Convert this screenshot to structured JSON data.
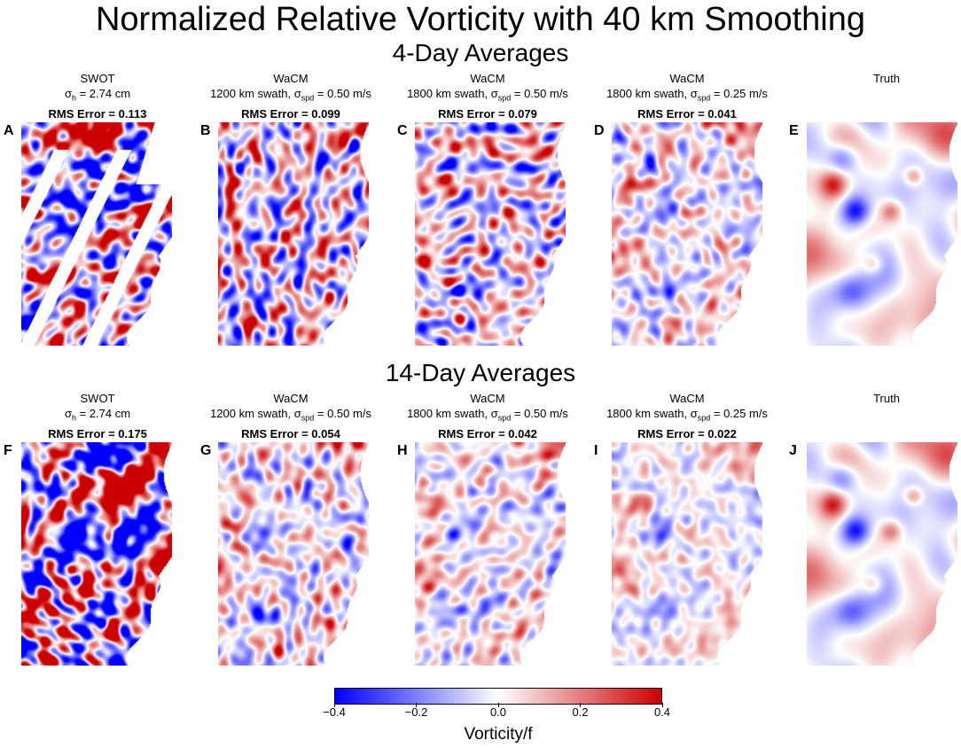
{
  "figure": {
    "title": "Normalized Relative Vorticity with 40 km Smoothing",
    "section_top": "4-Day Averages",
    "section_bottom": "14-Day Averages"
  },
  "chart_data": {
    "type": "heatmap",
    "colormap": {
      "low": "#0000ff",
      "mid": "#ffffff",
      "high": "#cc0000"
    },
    "vmin": -0.4,
    "vmax": 0.4,
    "colorbar": {
      "label": "Vorticity/f",
      "ticks": [
        -0.4,
        -0.2,
        0.0,
        0.2,
        0.4
      ],
      "tick_labels": [
        "−0.4",
        "−0.2",
        "0.0",
        "0.2",
        "0.4"
      ]
    },
    "panels": [
      {
        "letter": "A",
        "name": "SWOT",
        "param": "σh = 2.74 cm",
        "rms_label": "RMS Error = 0.113",
        "rms": 0.113,
        "average_days": 4
      },
      {
        "letter": "B",
        "name": "WaCM",
        "param": "1200 km swath, σspd = 0.50 m/s",
        "rms_label": "RMS Error = 0.099",
        "rms": 0.099,
        "average_days": 4
      },
      {
        "letter": "C",
        "name": "WaCM",
        "param": "1800 km swath, σspd = 0.50 m/s",
        "rms_label": "RMS Error = 0.079",
        "rms": 0.079,
        "average_days": 4
      },
      {
        "letter": "D",
        "name": "WaCM",
        "param": "1800 km swath, σspd = 0.25 m/s",
        "rms_label": "RMS Error = 0.041",
        "rms": 0.041,
        "average_days": 4
      },
      {
        "letter": "E",
        "name": "Truth",
        "param": "",
        "rms_label": "",
        "rms": 0,
        "average_days": 4
      },
      {
        "letter": "F",
        "name": "SWOT",
        "param": "σh = 2.74 cm",
        "rms_label": "RMS Error = 0.175",
        "rms": 0.175,
        "average_days": 14
      },
      {
        "letter": "G",
        "name": "WaCM",
        "param": "1200 km swath, σspd = 0.50 m/s",
        "rms_label": "RMS Error = 0.054",
        "rms": 0.054,
        "average_days": 14
      },
      {
        "letter": "H",
        "name": "WaCM",
        "param": "1800 km swath, σspd = 0.50 m/s",
        "rms_label": "RMS Error = 0.042",
        "rms": 0.042,
        "average_days": 14
      },
      {
        "letter": "I",
        "name": "WaCM",
        "param": "1800 km swath, σspd = 0.25 m/s",
        "rms_label": "RMS Error = 0.022",
        "rms": 0.022,
        "average_days": 14
      },
      {
        "letter": "J",
        "name": "Truth",
        "param": "",
        "rms_label": "",
        "rms": 0,
        "average_days": 14
      }
    ]
  }
}
